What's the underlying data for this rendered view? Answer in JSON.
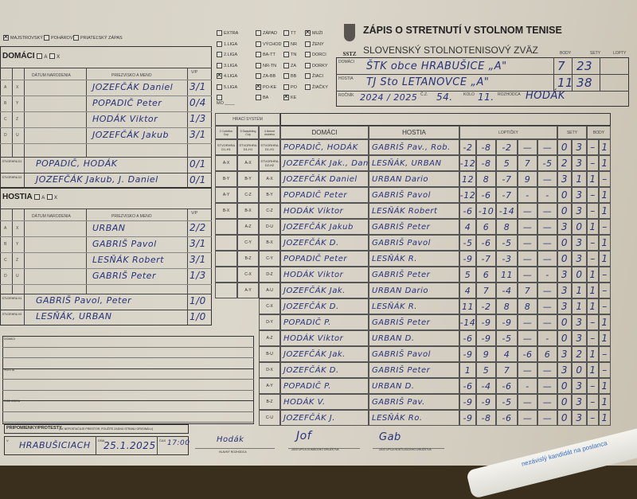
{
  "match_type": [
    {
      "label": "Majstrovský",
      "checked": true
    },
    {
      "label": "Pohárový",
      "checked": false
    },
    {
      "label": "Priateľský zápas",
      "checked": false
    }
  ],
  "categories": [
    [
      {
        "label": "Extra",
        "checked": false
      },
      {
        "label": "1.liga",
        "checked": false
      },
      {
        "label": "2.liga",
        "checked": false
      },
      {
        "label": "3.liga",
        "checked": false
      },
      {
        "label": "4.liga",
        "checked": true
      },
      {
        "label": "5.liga",
        "checked": false
      },
      {
        "label": "",
        "checked": false
      }
    ],
    [
      {
        "label": "Západ",
        "checked": false
      },
      {
        "label": "Východ",
        "checked": false
      },
      {
        "label": "BA-TT",
        "checked": false
      },
      {
        "label": "NR-TN",
        "checked": false
      },
      {
        "label": "ZA-BB",
        "checked": false
      },
      {
        "label": "PO-KE",
        "checked": true
      },
      {
        "label": "BA",
        "checked": false
      }
    ],
    [
      {
        "label": "TT",
        "checked": false
      },
      {
        "label": "NR",
        "checked": false
      },
      {
        "label": "TN",
        "checked": false
      },
      {
        "label": "ZA",
        "checked": false
      },
      {
        "label": "BB",
        "checked": false
      },
      {
        "label": "PO",
        "checked": false
      },
      {
        "label": "KE",
        "checked": true
      }
    ],
    [
      {
        "label": "Muži",
        "checked": true
      },
      {
        "label": "Ženy",
        "checked": false
      },
      {
        "label": "Dorci",
        "checked": false
      },
      {
        "label": "Dorky",
        "checked": false
      },
      {
        "label": "Žiaci",
        "checked": false
      },
      {
        "label": "Žiačky",
        "checked": false
      }
    ]
  ],
  "mo_label": "MO ____",
  "header": {
    "logo_text": "SSTZ",
    "title": "ZÁPIS O STRETNUTÍ V STOLNOM TENISE",
    "subtitle": "SLOVENSKÝ STOLNOTENISOVÝ ZVÄZ",
    "col_body": "BODY",
    "col_sety": "SETY",
    "col_lopty": "LOPTY",
    "home_label": "DOMÁCI",
    "home_team": "ŠTK obce HRABUŠICE „A\"",
    "home_body": "7",
    "home_sety": "23",
    "home_lopty": "",
    "away_label": "HOSTIA",
    "away_team": "TJ Sto LETANOVCE „A\"",
    "away_body": "11",
    "away_sety": "38",
    "away_lopty": "",
    "season_label": "ROČNÍK",
    "season": "2024 / 2025",
    "cz_label": "Č.Z.",
    "cz": "54.",
    "round_label": "KOLO",
    "round": "11.",
    "referee_label": "ROZHODCA",
    "referee": "HODÁK"
  },
  "home_roster": {
    "title": "DOMÁCI",
    "opt_a": "A",
    "opt_x": "X",
    "col_date": "DÁTUM NARODENIA",
    "col_name": "PRIEZVISKO A MENO",
    "col_vp": "V/P",
    "players": [
      {
        "l1": "A",
        "l2": "X",
        "name": "JOZEFČÁK Daniel",
        "vp": "3/1"
      },
      {
        "l1": "B",
        "l2": "Y",
        "name": "POPADIČ Peter",
        "vp": "0/4"
      },
      {
        "l1": "C",
        "l2": "Z",
        "name": "HODÁK Viktor",
        "vp": "1/3"
      },
      {
        "l1": "D",
        "l2": "U",
        "name": "JOZEFČÁK Jakub",
        "vp": "3/1"
      }
    ],
    "doubles": [
      {
        "label": "STVORHRA D1",
        "name": "POPADIČ, HODÁK",
        "vp": "0/1"
      },
      {
        "label": "STVORHRA D2",
        "name": "JOZEFČÁK Jakub, J. Daniel",
        "vp": "0/1"
      }
    ]
  },
  "away_roster": {
    "title": "HOSTIA",
    "opt_a": "A",
    "opt_x": "X",
    "col_date": "DÁTUM NARODENIA",
    "col_name": "PRIEZVISKO A MENO",
    "col_vp": "V/P",
    "players": [
      {
        "l1": "A",
        "l2": "X",
        "name": "URBAN",
        "vp": "2/2"
      },
      {
        "l1": "B",
        "l2": "Y",
        "name": "GABRIŠ Pavol",
        "vp": "3/1"
      },
      {
        "l1": "C",
        "l2": "Z",
        "name": "LESŇÁK Robert",
        "vp": "3/1"
      },
      {
        "l1": "D",
        "l2": "U",
        "name": "GABRIŠ Peter",
        "vp": "1/3"
      }
    ],
    "doubles": [
      {
        "label": "STVORHRA H1",
        "name": "GABRIŠ Pavol, Peter",
        "vp": "1/0"
      },
      {
        "label": "STVORHRA H2",
        "name": "LESŇÁK, URBAN",
        "vp": "1/0"
      }
    ]
  },
  "notes": {
    "domaci": "DOMÁCI",
    "hostia": "HOSTIA",
    "rozhodca": "ROZHODCA",
    "protests": "PRIPOMIENKY/PROTESTY",
    "protests_hint": "(AK NEPOSTAČUJE PRIESTOR, POUŽITE ZADNÚ STRANU ORIGINÁLU)"
  },
  "footer": {
    "v_label": "V",
    "place": "HRABUŠICIACH",
    "date_label": "DŇA",
    "date": "25.1.2025",
    "time_label": "ČAS",
    "time": "17:00",
    "sig_referee": "HLAVNÝ ROZHODCA",
    "sig_home": "ZÁSTUPCA DOMÁCEHO DRUŽSTVA",
    "sig_away": "ZÁSTUPCA HOSŤUJÚCEHO DRUŽSTVA"
  },
  "pen_text": "nezávislý kandidát na poslanca",
  "games": {
    "system_title": "HRACÍ SYSTÉM",
    "system_cols": [
      "2 Corbillon Cup",
      "5 Swaythling Cup",
      "4 členné družstvo"
    ],
    "col_home": "DOMÁCI",
    "col_away": "HOSTIA",
    "col_balls": "LOPTIČKY",
    "col_sets": "SETY",
    "col_points": "BODY",
    "rows": [
      {
        "sys": [
          "STVORHRA D1-H1",
          "STVORHRA D1-H1",
          "STVORHRA D1-H1"
        ],
        "home": "POPADIČ, HODÁK",
        "away": "GABRIŠ Pav., Rob.",
        "balls": [
          "-2",
          "-8",
          "-2",
          "—",
          "—"
        ],
        "sets": [
          "0",
          "3"
        ],
        "points": [
          "–",
          "1"
        ]
      },
      {
        "sys": [
          "A-X",
          "A-X",
          "STVORHRA D2-H2"
        ],
        "home": "JOZEFČÁK Jak., Dan.",
        "away": "LESŇÁK, URBAN",
        "balls": [
          "-12",
          "-8",
          "5",
          "7",
          "-5"
        ],
        "sets": [
          "2",
          "3"
        ],
        "points": [
          "–",
          "1"
        ]
      },
      {
        "sys": [
          "B-Y",
          "B-Y",
          "A-X"
        ],
        "home": "JOZEFČÁK Daniel",
        "away": "URBAN Dario",
        "balls": [
          "12",
          "8",
          "-7",
          "9",
          "—"
        ],
        "sets": [
          "3",
          "1"
        ],
        "points": [
          "1",
          "–"
        ]
      },
      {
        "sys": [
          "A-Y",
          "C-Z",
          "B-Y"
        ],
        "home": "POPADIČ Peter",
        "away": "GABRIŠ Pavol",
        "balls": [
          "-12",
          "-6",
          "-7",
          "-",
          "-"
        ],
        "sets": [
          "0",
          "3"
        ],
        "points": [
          "–",
          "1"
        ]
      },
      {
        "sys": [
          "B-X",
          "B-X",
          "C-Z"
        ],
        "home": "HODÁK Viktor",
        "away": "LESŇÁK Robert",
        "balls": [
          "-6",
          "-10",
          "-14",
          "—",
          "—"
        ],
        "sets": [
          "0",
          "3"
        ],
        "points": [
          "–",
          "1"
        ]
      },
      {
        "sys": [
          "",
          "A-Z",
          "D-U"
        ],
        "home": "JOZEFČÁK Jakub",
        "away": "GABRIŠ Peter",
        "balls": [
          "4",
          "6",
          "8",
          "—",
          "—"
        ],
        "sets": [
          "3",
          "0"
        ],
        "points": [
          "1",
          "–"
        ]
      },
      {
        "sys": [
          "",
          "C-Y",
          "B-X"
        ],
        "home": "JOZEFČÁK D.",
        "away": "GABRIŠ Pavol",
        "balls": [
          "-5",
          "-6",
          "-5",
          "—",
          "—"
        ],
        "sets": [
          "0",
          "3"
        ],
        "points": [
          "–",
          "1"
        ]
      },
      {
        "sys": [
          "",
          "B-Z",
          "C-Y"
        ],
        "home": "POPADIČ Peter",
        "away": "LESŇÁK R.",
        "balls": [
          "-9",
          "-7",
          "-3",
          "—",
          "—"
        ],
        "sets": [
          "0",
          "3"
        ],
        "points": [
          "–",
          "1"
        ]
      },
      {
        "sys": [
          "",
          "C-X",
          "D-Z"
        ],
        "home": "HODÁK Viktor",
        "away": "GABRIŠ Peter",
        "balls": [
          "5",
          "6",
          "11",
          "—",
          "-"
        ],
        "sets": [
          "3",
          "0"
        ],
        "points": [
          "1",
          "–"
        ]
      },
      {
        "sys": [
          "",
          "A-Y",
          "A-U"
        ],
        "home": "JOZEFČÁK Jak.",
        "away": "URBAN Dario",
        "balls": [
          "4",
          "7",
          "-4",
          "7",
          "—"
        ],
        "sets": [
          "3",
          "1"
        ],
        "points": [
          "1",
          "–"
        ]
      },
      {
        "sys": [
          "",
          "",
          "C-X"
        ],
        "home": "JOZEFČÁK D.",
        "away": "LESŇÁK R.",
        "balls": [
          "11",
          "-2",
          "8",
          "8",
          "—"
        ],
        "sets": [
          "3",
          "1"
        ],
        "points": [
          "1",
          "–"
        ]
      },
      {
        "sys": [
          "",
          "",
          "D-Y"
        ],
        "home": "POPADIČ P.",
        "away": "GABRIŠ Peter",
        "balls": [
          "-14",
          "-9",
          "-9",
          "—",
          "—"
        ],
        "sets": [
          "0",
          "3"
        ],
        "points": [
          "–",
          "1"
        ]
      },
      {
        "sys": [
          "",
          "",
          "A-Z"
        ],
        "home": "HODÁK Viktor",
        "away": "URBAN D.",
        "balls": [
          "-6",
          "-9",
          "-5",
          "—",
          "-"
        ],
        "sets": [
          "0",
          "3"
        ],
        "points": [
          "–",
          "1"
        ]
      },
      {
        "sys": [
          "",
          "",
          "B-U"
        ],
        "home": "JOZEFČÁK Jak.",
        "away": "GABRIŠ Pavol",
        "balls": [
          "-9",
          "9",
          "4",
          "-6",
          "6"
        ],
        "sets": [
          "3",
          "2"
        ],
        "points": [
          "1",
          "–"
        ]
      },
      {
        "sys": [
          "",
          "",
          "D-X"
        ],
        "home": "JOZEFČÁK D.",
        "away": "GABRIŠ Peter",
        "balls": [
          "1",
          "5",
          "7",
          "—",
          "—"
        ],
        "sets": [
          "3",
          "0"
        ],
        "points": [
          "1",
          "–"
        ]
      },
      {
        "sys": [
          "",
          "",
          "A-Y"
        ],
        "home": "POPADIČ P.",
        "away": "URBAN D.",
        "balls": [
          "-6",
          "-4",
          "-6",
          "-",
          "—"
        ],
        "sets": [
          "0",
          "3"
        ],
        "points": [
          "–",
          "1"
        ]
      },
      {
        "sys": [
          "",
          "",
          "B-Z"
        ],
        "home": "HODÁK V.",
        "away": "GABRIŠ Pav.",
        "balls": [
          "-9",
          "-9",
          "-5",
          "—",
          "—"
        ],
        "sets": [
          "0",
          "3"
        ],
        "points": [
          "–",
          "1"
        ]
      },
      {
        "sys": [
          "",
          "",
          "C-U"
        ],
        "home": "JOZEFČÁK J.",
        "away": "LESŇÁK Ro.",
        "balls": [
          "-9",
          "-8",
          "-6",
          "—",
          "—"
        ],
        "sets": [
          "0",
          "3"
        ],
        "points": [
          "–",
          "1"
        ]
      }
    ]
  },
  "colors": {
    "paper": "#d8d3c7",
    "ink": "#27327a",
    "print": "#2b2b2b"
  }
}
